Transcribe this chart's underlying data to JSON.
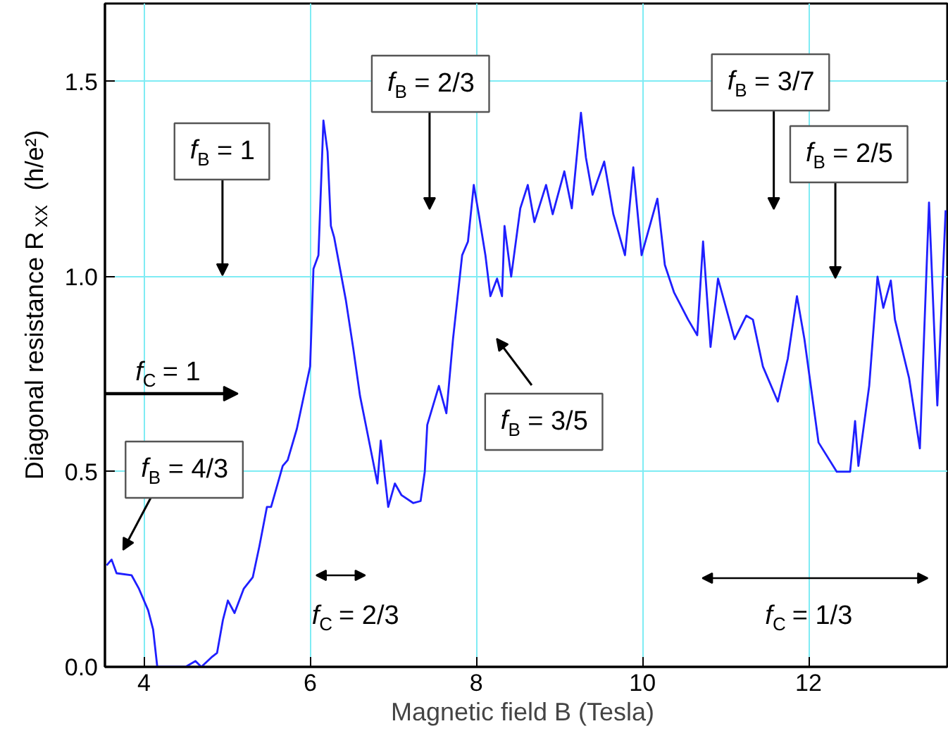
{
  "chart_data": {
    "type": "line",
    "xlabel": "Magnetic field  B (Tesla)",
    "ylabel": "Diagonal resistance  R$_{XX}$  (h/e²)",
    "x": [
      3.55,
      3.61,
      3.67,
      3.85,
      3.94,
      4.05,
      4.11,
      4.16,
      4.5,
      4.62,
      4.69,
      4.81,
      4.88,
      4.95,
      5.01,
      5.09,
      5.2,
      5.31,
      5.39,
      5.48,
      5.53,
      5.67,
      5.73,
      5.84,
      5.94,
      6.0,
      6.04,
      6.1,
      6.16,
      6.21,
      6.25,
      6.29,
      6.43,
      6.52,
      6.6,
      6.68,
      6.81,
      6.85,
      6.94,
      7.02,
      7.1,
      7.24,
      7.33,
      7.38,
      7.41,
      7.55,
      7.64,
      7.72,
      7.83,
      7.9,
      7.97,
      8.03,
      8.11,
      8.17,
      8.25,
      8.31,
      8.34,
      8.42,
      8.53,
      8.62,
      8.7,
      8.84,
      8.92,
      9.06,
      9.15,
      9.26,
      9.32,
      9.4,
      9.54,
      9.65,
      9.79,
      9.89,
      9.99,
      10.18,
      10.27,
      10.38,
      10.55,
      10.66,
      10.73,
      10.82,
      10.91,
      11.11,
      11.25,
      11.33,
      11.45,
      11.63,
      11.75,
      11.86,
      11.95,
      12.12,
      12.34,
      12.5,
      12.56,
      12.6,
      12.73,
      12.83,
      12.9,
      12.99,
      13.04,
      13.21,
      13.34,
      13.45,
      13.55,
      13.65
    ],
    "series": [
      {
        "color": "#1f1fff",
        "values": [
          0.26,
          0.275,
          0.24,
          0.235,
          0.2,
          0.145,
          0.096,
          0.0,
          0.0,
          0.015,
          0.0,
          0.024,
          0.036,
          0.12,
          0.17,
          0.138,
          0.2,
          0.23,
          0.31,
          0.41,
          0.41,
          0.515,
          0.53,
          0.61,
          0.71,
          0.77,
          1.02,
          1.055,
          1.4,
          1.32,
          1.13,
          1.1,
          0.94,
          0.815,
          0.695,
          0.61,
          0.47,
          0.58,
          0.41,
          0.47,
          0.44,
          0.42,
          0.425,
          0.5,
          0.62,
          0.72,
          0.65,
          0.84,
          1.055,
          1.09,
          1.235,
          1.16,
          1.055,
          0.95,
          0.995,
          0.95,
          1.13,
          1.0,
          1.175,
          1.235,
          1.14,
          1.235,
          1.16,
          1.27,
          1.175,
          1.42,
          1.305,
          1.21,
          1.295,
          1.16,
          1.055,
          1.28,
          1.055,
          1.2,
          1.03,
          0.96,
          0.89,
          0.85,
          1.09,
          0.82,
          0.995,
          0.84,
          0.9,
          0.89,
          0.77,
          0.68,
          0.79,
          0.95,
          0.84,
          0.575,
          0.5,
          0.5,
          0.63,
          0.515,
          0.72,
          1.0,
          0.92,
          0.99,
          0.89,
          0.74,
          0.56,
          1.19,
          0.67,
          1.17
        ]
      }
    ],
    "xlim": [
      3.53,
      13.67
    ],
    "ylim": [
      0,
      1.7
    ],
    "xticks": [
      4,
      6,
      8,
      10,
      12
    ],
    "yticks": [
      {
        "value": 0,
        "label": "0.0"
      },
      0.5,
      {
        "value": 1,
        "label": "1.0"
      },
      1.5
    ],
    "grid": true,
    "annotations": [
      "f$_{B}$ = 1",
      "f$_{B}$ = 2/3",
      "f$_{B}$ = 3/7",
      "f$_{B}$ = 2/5",
      "f$_{B}$ = 4/3",
      "f$_{B}$ = 3/5",
      "f$_{C}$ = 1",
      "f$_{C}$ = 2/3",
      "f$_{C}$ = 1/3"
    ]
  }
}
